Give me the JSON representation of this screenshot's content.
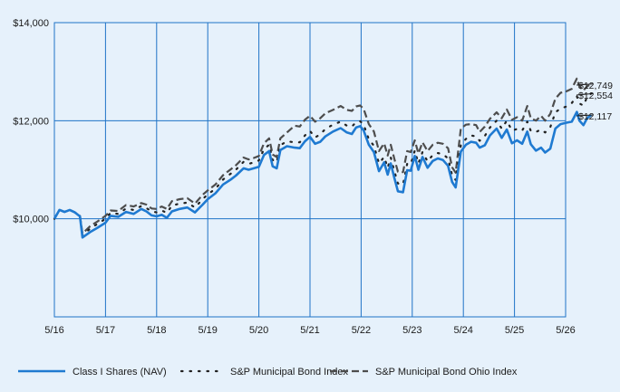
{
  "chart_data": {
    "type": "line",
    "title": "",
    "xlabel": "",
    "ylabel": "",
    "ylim": [
      8000,
      14000
    ],
    "y_ticks": [
      "$14,000",
      "$12,000",
      "$10,000"
    ],
    "y_tick_values": [
      14000,
      12000,
      10000
    ],
    "x_tick_labels": [
      "5/16",
      "5/17",
      "5/18",
      "5/19",
      "5/20",
      "5/21",
      "5/22",
      "5/23",
      "5/24",
      "5/25",
      "5/26"
    ],
    "x_range": [
      0,
      10
    ],
    "grid": true,
    "legend_position": "bottom",
    "colors": {
      "background": "#e6f1fb",
      "plot_border": "#1f73c7",
      "grid": "#1f73c7"
    },
    "series": [
      {
        "name": "Class I Shares (NAV)",
        "color": "#1f7ad1",
        "style": "solid",
        "end_label": "$12,117",
        "points": [
          [
            0,
            10000
          ],
          [
            0.1,
            10180
          ],
          [
            0.2,
            10140
          ],
          [
            0.3,
            10180
          ],
          [
            0.4,
            10130
          ],
          [
            0.5,
            10050
          ],
          [
            0.55,
            9620
          ],
          [
            0.7,
            9730
          ],
          [
            0.85,
            9820
          ],
          [
            1.0,
            9920
          ],
          [
            1.1,
            10060
          ],
          [
            1.25,
            10040
          ],
          [
            1.4,
            10140
          ],
          [
            1.55,
            10100
          ],
          [
            1.7,
            10200
          ],
          [
            1.8,
            10150
          ],
          [
            1.9,
            10070
          ],
          [
            2.0,
            10050
          ],
          [
            2.1,
            10080
          ],
          [
            2.2,
            10020
          ],
          [
            2.3,
            10150
          ],
          [
            2.45,
            10200
          ],
          [
            2.6,
            10230
          ],
          [
            2.75,
            10130
          ],
          [
            2.9,
            10290
          ],
          [
            3.0,
            10400
          ],
          [
            3.15,
            10520
          ],
          [
            3.3,
            10700
          ],
          [
            3.45,
            10800
          ],
          [
            3.55,
            10880
          ],
          [
            3.7,
            11030
          ],
          [
            3.8,
            11000
          ],
          [
            3.9,
            11030
          ],
          [
            4.0,
            11060
          ],
          [
            4.1,
            11300
          ],
          [
            4.2,
            11380
          ],
          [
            4.27,
            11070
          ],
          [
            4.35,
            11030
          ],
          [
            4.42,
            11400
          ],
          [
            4.55,
            11480
          ],
          [
            4.7,
            11450
          ],
          [
            4.8,
            11440
          ],
          [
            4.9,
            11580
          ],
          [
            5.0,
            11670
          ],
          [
            5.1,
            11530
          ],
          [
            5.2,
            11570
          ],
          [
            5.3,
            11680
          ],
          [
            5.45,
            11780
          ],
          [
            5.6,
            11850
          ],
          [
            5.72,
            11760
          ],
          [
            5.82,
            11730
          ],
          [
            5.9,
            11860
          ],
          [
            5.98,
            11890
          ],
          [
            6.05,
            11800
          ],
          [
            6.15,
            11510
          ],
          [
            6.25,
            11360
          ],
          [
            6.35,
            10970
          ],
          [
            6.45,
            11150
          ],
          [
            6.52,
            10900
          ],
          [
            6.58,
            11130
          ],
          [
            6.65,
            10830
          ],
          [
            6.72,
            10560
          ],
          [
            6.82,
            10540
          ],
          [
            6.9,
            10990
          ],
          [
            6.97,
            10980
          ],
          [
            7.05,
            11280
          ],
          [
            7.12,
            11000
          ],
          [
            7.2,
            11260
          ],
          [
            7.3,
            11040
          ],
          [
            7.4,
            11180
          ],
          [
            7.5,
            11230
          ],
          [
            7.6,
            11200
          ],
          [
            7.7,
            11080
          ],
          [
            7.78,
            10750
          ],
          [
            7.85,
            10640
          ],
          [
            7.95,
            11370
          ],
          [
            8.05,
            11510
          ],
          [
            8.15,
            11570
          ],
          [
            8.25,
            11550
          ],
          [
            8.32,
            11450
          ],
          [
            8.42,
            11500
          ],
          [
            8.52,
            11700
          ],
          [
            8.65,
            11840
          ],
          [
            8.75,
            11650
          ],
          [
            8.85,
            11820
          ],
          [
            8.95,
            11540
          ],
          [
            9.05,
            11600
          ],
          [
            9.15,
            11530
          ],
          [
            9.25,
            11780
          ],
          [
            9.32,
            11520
          ],
          [
            9.42,
            11390
          ],
          [
            9.52,
            11450
          ],
          [
            9.6,
            11350
          ],
          [
            9.7,
            11430
          ],
          [
            9.8,
            11840
          ],
          [
            9.9,
            11930
          ],
          [
            10.02,
            11960
          ],
          [
            10.12,
            11980
          ],
          [
            10.22,
            12180
          ],
          [
            10.27,
            12000
          ],
          [
            10.35,
            11910
          ],
          [
            10.42,
            12050
          ],
          [
            10.5,
            12117
          ]
        ]
      },
      {
        "name": "S&P Municipal Bond Index",
        "color": "#222222",
        "style": "dotted",
        "end_label": "$12,554",
        "points": [
          [
            0,
            10000
          ],
          [
            0.1,
            10180
          ],
          [
            0.2,
            10140
          ],
          [
            0.3,
            10180
          ],
          [
            0.4,
            10130
          ],
          [
            0.5,
            10050
          ],
          [
            0.55,
            9660
          ],
          [
            0.7,
            9800
          ],
          [
            0.85,
            9900
          ],
          [
            1.0,
            10000
          ],
          [
            1.1,
            10120
          ],
          [
            1.25,
            10100
          ],
          [
            1.4,
            10210
          ],
          [
            1.55,
            10180
          ],
          [
            1.7,
            10260
          ],
          [
            1.8,
            10220
          ],
          [
            1.9,
            10150
          ],
          [
            2.0,
            10130
          ],
          [
            2.1,
            10170
          ],
          [
            2.2,
            10120
          ],
          [
            2.3,
            10270
          ],
          [
            2.45,
            10310
          ],
          [
            2.6,
            10330
          ],
          [
            2.75,
            10230
          ],
          [
            2.9,
            10400
          ],
          [
            3.0,
            10500
          ],
          [
            3.15,
            10610
          ],
          [
            3.3,
            10800
          ],
          [
            3.45,
            10920
          ],
          [
            3.55,
            11000
          ],
          [
            3.7,
            11160
          ],
          [
            3.8,
            11120
          ],
          [
            3.9,
            11150
          ],
          [
            4.0,
            11190
          ],
          [
            4.1,
            11420
          ],
          [
            4.2,
            11510
          ],
          [
            4.27,
            11200
          ],
          [
            4.35,
            11150
          ],
          [
            4.42,
            11500
          ],
          [
            4.55,
            11580
          ],
          [
            4.7,
            11560
          ],
          [
            4.8,
            11560
          ],
          [
            4.9,
            11700
          ],
          [
            5.0,
            11790
          ],
          [
            5.1,
            11660
          ],
          [
            5.2,
            11720
          ],
          [
            5.3,
            11830
          ],
          [
            5.45,
            11920
          ],
          [
            5.6,
            11980
          ],
          [
            5.72,
            11900
          ],
          [
            5.82,
            11880
          ],
          [
            5.9,
            11970
          ],
          [
            5.98,
            11990
          ],
          [
            6.05,
            11920
          ],
          [
            6.15,
            11620
          ],
          [
            6.25,
            11490
          ],
          [
            6.35,
            11130
          ],
          [
            6.45,
            11260
          ],
          [
            6.52,
            11040
          ],
          [
            6.58,
            11250
          ],
          [
            6.65,
            10970
          ],
          [
            6.72,
            10720
          ],
          [
            6.82,
            10700
          ],
          [
            6.9,
            11120
          ],
          [
            6.97,
            11110
          ],
          [
            7.05,
            11390
          ],
          [
            7.12,
            11130
          ],
          [
            7.2,
            11360
          ],
          [
            7.3,
            11170
          ],
          [
            7.4,
            11300
          ],
          [
            7.5,
            11340
          ],
          [
            7.6,
            11320
          ],
          [
            7.7,
            11230
          ],
          [
            7.78,
            10890
          ],
          [
            7.85,
            10790
          ],
          [
            7.95,
            11500
          ],
          [
            8.05,
            11630
          ],
          [
            8.15,
            11700
          ],
          [
            8.25,
            11680
          ],
          [
            8.32,
            11590
          ],
          [
            8.42,
            11690
          ],
          [
            8.52,
            11860
          ],
          [
            8.65,
            12000
          ],
          [
            8.75,
            11840
          ],
          [
            8.85,
            12000
          ],
          [
            8.95,
            11800
          ],
          [
            9.05,
            11830
          ],
          [
            9.15,
            11800
          ],
          [
            9.25,
            11980
          ],
          [
            9.32,
            11790
          ],
          [
            9.42,
            11770
          ],
          [
            9.52,
            11820
          ],
          [
            9.6,
            11760
          ],
          [
            9.7,
            11870
          ],
          [
            9.8,
            12170
          ],
          [
            9.9,
            12250
          ],
          [
            10.02,
            12290
          ],
          [
            10.12,
            12360
          ],
          [
            10.22,
            12500
          ],
          [
            10.27,
            12350
          ],
          [
            10.35,
            12310
          ],
          [
            10.42,
            12480
          ],
          [
            10.5,
            12554
          ]
        ]
      },
      {
        "name": "S&P Municipal Bond Ohio Index",
        "color": "#4d4d4d",
        "style": "dashed",
        "end_label": "$12,749",
        "points": [
          [
            0,
            10000
          ],
          [
            0.1,
            10180
          ],
          [
            0.2,
            10140
          ],
          [
            0.3,
            10180
          ],
          [
            0.4,
            10130
          ],
          [
            0.5,
            10060
          ],
          [
            0.55,
            9700
          ],
          [
            0.7,
            9850
          ],
          [
            0.85,
            9950
          ],
          [
            1.0,
            10060
          ],
          [
            1.1,
            10170
          ],
          [
            1.25,
            10160
          ],
          [
            1.4,
            10280
          ],
          [
            1.55,
            10250
          ],
          [
            1.7,
            10320
          ],
          [
            1.8,
            10290
          ],
          [
            1.9,
            10210
          ],
          [
            2.0,
            10200
          ],
          [
            2.1,
            10250
          ],
          [
            2.2,
            10200
          ],
          [
            2.3,
            10360
          ],
          [
            2.45,
            10400
          ],
          [
            2.6,
            10420
          ],
          [
            2.75,
            10310
          ],
          [
            2.9,
            10490
          ],
          [
            3.0,
            10580
          ],
          [
            3.15,
            10700
          ],
          [
            3.3,
            10890
          ],
          [
            3.45,
            11010
          ],
          [
            3.55,
            11090
          ],
          [
            3.7,
            11250
          ],
          [
            3.8,
            11210
          ],
          [
            3.9,
            11240
          ],
          [
            4.0,
            11280
          ],
          [
            4.1,
            11540
          ],
          [
            4.2,
            11640
          ],
          [
            4.27,
            11310
          ],
          [
            4.35,
            11260
          ],
          [
            4.42,
            11640
          ],
          [
            4.55,
            11760
          ],
          [
            4.7,
            11900
          ],
          [
            4.8,
            11880
          ],
          [
            4.9,
            12020
          ],
          [
            5.0,
            12100
          ],
          [
            5.1,
            11980
          ],
          [
            5.2,
            12050
          ],
          [
            5.3,
            12150
          ],
          [
            5.45,
            12220
          ],
          [
            5.6,
            12300
          ],
          [
            5.72,
            12220
          ],
          [
            5.82,
            12200
          ],
          [
            5.9,
            12290
          ],
          [
            5.98,
            12310
          ],
          [
            6.05,
            12240
          ],
          [
            6.15,
            11930
          ],
          [
            6.25,
            11780
          ],
          [
            6.35,
            11380
          ],
          [
            6.45,
            11540
          ],
          [
            6.52,
            11290
          ],
          [
            6.58,
            11510
          ],
          [
            6.65,
            11220
          ],
          [
            6.72,
            10960
          ],
          [
            6.82,
            10950
          ],
          [
            6.9,
            11380
          ],
          [
            6.97,
            11360
          ],
          [
            7.05,
            11600
          ],
          [
            7.12,
            11330
          ],
          [
            7.2,
            11560
          ],
          [
            7.3,
            11380
          ],
          [
            7.4,
            11510
          ],
          [
            7.5,
            11550
          ],
          [
            7.6,
            11530
          ],
          [
            7.7,
            11440
          ],
          [
            7.78,
            11050
          ],
          [
            7.85,
            10940
          ],
          [
            7.95,
            11840
          ],
          [
            8.05,
            11920
          ],
          [
            8.15,
            11930
          ],
          [
            8.25,
            11910
          ],
          [
            8.32,
            11770
          ],
          [
            8.42,
            11880
          ],
          [
            8.52,
            12040
          ],
          [
            8.65,
            12170
          ],
          [
            8.75,
            12050
          ],
          [
            8.85,
            12230
          ],
          [
            8.95,
            12020
          ],
          [
            9.05,
            12070
          ],
          [
            9.15,
            12000
          ],
          [
            9.25,
            12300
          ],
          [
            9.32,
            12050
          ],
          [
            9.42,
            12000
          ],
          [
            9.52,
            12100
          ],
          [
            9.6,
            12000
          ],
          [
            9.7,
            12140
          ],
          [
            9.8,
            12450
          ],
          [
            9.9,
            12570
          ],
          [
            10.02,
            12600
          ],
          [
            10.12,
            12650
          ],
          [
            10.22,
            12860
          ],
          [
            10.27,
            12700
          ],
          [
            10.35,
            12620
          ],
          [
            10.42,
            12700
          ],
          [
            10.5,
            12749
          ]
        ]
      }
    ]
  }
}
